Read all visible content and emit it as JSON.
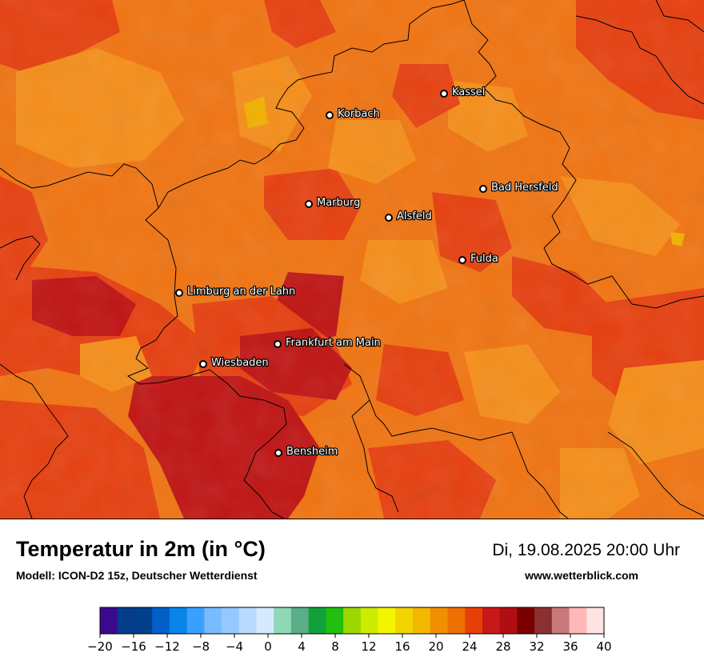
{
  "title": "Temperatur in 2m (in °C)",
  "model": "Modell: ICON-D2 15z, Deutscher Wetterdienst",
  "datetime": "Di, 19.08.2025 20:00 Uhr",
  "website": "www.wetterblick.com",
  "cities": [
    {
      "name": "Kassel"
    },
    {
      "name": "Korbach"
    },
    {
      "name": "Bad Hersfeld"
    },
    {
      "name": "Marburg"
    },
    {
      "name": "Alsfeld"
    },
    {
      "name": "Fulda"
    },
    {
      "name": "Limburg an der Lahn"
    },
    {
      "name": "Frankfurt am Main"
    },
    {
      "name": "Wiesbaden"
    },
    {
      "name": "Bensheim"
    }
  ],
  "legend": {
    "min": -20,
    "max": 40,
    "step": 2,
    "tick_labels": [
      "−20",
      "−16",
      "−12",
      "−8",
      "−4",
      "0",
      "4",
      "8",
      "12",
      "16",
      "20",
      "24",
      "28",
      "32",
      "36",
      "40"
    ],
    "colors": [
      "#3a0a8c",
      "#043d8c",
      "#003f8a",
      "#0060c8",
      "#0a84e8",
      "#3aa0ff",
      "#78bcff",
      "#94c8ff",
      "#b8daff",
      "#d6eaff",
      "#8ed8b6",
      "#5aae88",
      "#12a03a",
      "#22be10",
      "#9ad800",
      "#cced00",
      "#f4f400",
      "#f2d400",
      "#f2b800",
      "#f09000",
      "#ee7000",
      "#e64008",
      "#c81818",
      "#b00e10",
      "#7a0000",
      "#8a3030",
      "#c87a7a",
      "#ffb8b8",
      "#ffe2e2"
    ]
  },
  "map_colors": {
    "base": "#f07412",
    "warm": "#e64010",
    "hot": "#c01414",
    "cool": "#f58e1a",
    "coolest": "#f2b000"
  }
}
